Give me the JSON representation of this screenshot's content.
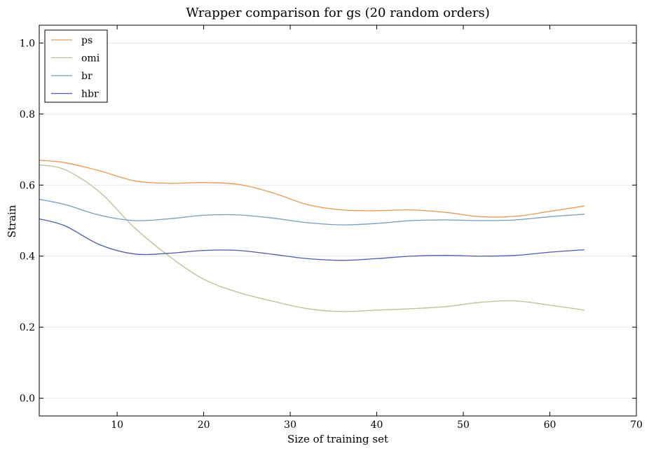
{
  "chart_data": {
    "type": "line",
    "title": "Wrapper comparison for gs (20 random orders)",
    "xlabel": "Size of training set",
    "ylabel": "Strain",
    "xlim": [
      1,
      70
    ],
    "ylim": [
      -0.05,
      1.05
    ],
    "xticks": [
      10,
      20,
      30,
      40,
      50,
      60,
      70
    ],
    "yticks": [
      0.0,
      0.2,
      0.4,
      0.6,
      0.8,
      1.0
    ],
    "xtick_labels": [
      "10",
      "20",
      "30",
      "40",
      "50",
      "60",
      "70"
    ],
    "ytick_labels": [
      "0.0",
      "0.2",
      "0.4",
      "0.6",
      "0.8",
      "1.0"
    ],
    "grid": "horizontal",
    "legend_position": "upper-left",
    "x": [
      1,
      4,
      8,
      12,
      16,
      20,
      24,
      28,
      32,
      36,
      40,
      44,
      48,
      52,
      56,
      60,
      64
    ],
    "series": [
      {
        "name": "ps",
        "color": "#f0964a",
        "values": [
          0.67,
          0.663,
          0.64,
          0.612,
          0.605,
          0.607,
          0.602,
          0.578,
          0.545,
          0.53,
          0.528,
          0.53,
          0.523,
          0.511,
          0.512,
          0.526,
          0.541
        ]
      },
      {
        "name": "omi",
        "color": "#b5c38e",
        "values": [
          0.657,
          0.643,
          0.58,
          0.48,
          0.4,
          0.335,
          0.298,
          0.273,
          0.252,
          0.244,
          0.248,
          0.252,
          0.258,
          0.27,
          0.274,
          0.262,
          0.248
        ]
      },
      {
        "name": "br",
        "color": "#6f9ec8",
        "values": [
          0.56,
          0.545,
          0.515,
          0.5,
          0.505,
          0.515,
          0.516,
          0.507,
          0.494,
          0.488,
          0.492,
          0.5,
          0.502,
          0.5,
          0.502,
          0.511,
          0.518
        ]
      },
      {
        "name": "hbr",
        "color": "#4a5cb4",
        "values": [
          0.505,
          0.485,
          0.432,
          0.406,
          0.408,
          0.416,
          0.416,
          0.405,
          0.393,
          0.388,
          0.393,
          0.4,
          0.402,
          0.4,
          0.402,
          0.411,
          0.418
        ]
      }
    ]
  }
}
